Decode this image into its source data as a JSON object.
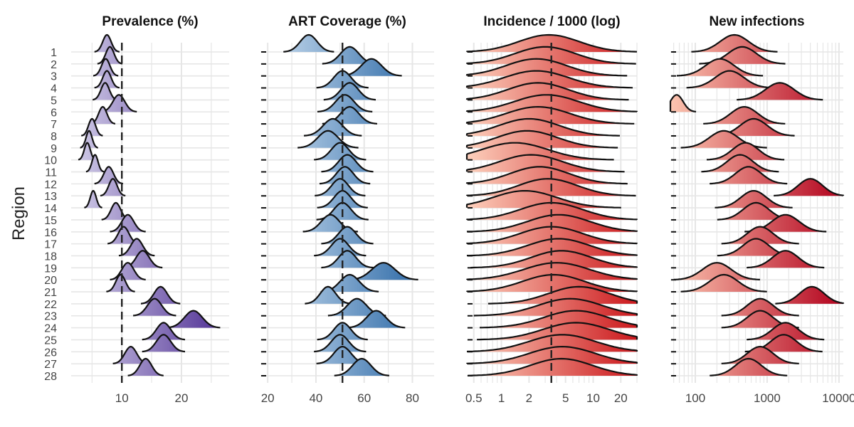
{
  "chart_data": {
    "type": "ridgeline",
    "ylabel": "Region",
    "regions": [
      "1",
      "2",
      "3",
      "4",
      "5",
      "6",
      "7",
      "8",
      "9",
      "10",
      "11",
      "12",
      "13",
      "14",
      "15",
      "16",
      "17",
      "18",
      "19",
      "20",
      "21",
      "22",
      "23",
      "24",
      "25",
      "26",
      "27",
      "28"
    ],
    "panels": [
      {
        "title": "Prevalence (%)",
        "scale": "linear",
        "xlim": [
          1.5,
          28
        ],
        "ticks": [
          10,
          20
        ],
        "tick_labels": [
          "10",
          "20"
        ],
        "reference_line": 10,
        "color_low": "#d4d0ea",
        "color_high": "#4b2a91",
        "show_region_labels": true,
        "distributions": [
          {
            "mode": 7.5,
            "spread": 0.7
          },
          {
            "mode": 8,
            "spread": 0.7
          },
          {
            "mode": 7.3,
            "spread": 0.7
          },
          {
            "mode": 7.5,
            "spread": 0.7
          },
          {
            "mode": 7.2,
            "spread": 0.7
          },
          {
            "mode": 9.5,
            "spread": 1.0
          },
          {
            "mode": 6.8,
            "spread": 0.7
          },
          {
            "mode": 5,
            "spread": 0.6
          },
          {
            "mode": 4.5,
            "spread": 0.5
          },
          {
            "mode": 4.2,
            "spread": 0.5
          },
          {
            "mode": 5.5,
            "spread": 0.5
          },
          {
            "mode": 7.8,
            "spread": 0.8
          },
          {
            "mode": 8.5,
            "spread": 0.7
          },
          {
            "mode": 5.2,
            "spread": 0.5
          },
          {
            "mode": 9,
            "spread": 0.8
          },
          {
            "mode": 11,
            "spread": 1.0
          },
          {
            "mode": 10.3,
            "spread": 0.9
          },
          {
            "mode": 12.5,
            "spread": 1.0
          },
          {
            "mode": 13.5,
            "spread": 1.1
          },
          {
            "mode": 11,
            "spread": 1.0
          },
          {
            "mode": 9.8,
            "spread": 0.8
          },
          {
            "mode": 16.5,
            "spread": 1.1
          },
          {
            "mode": 15.5,
            "spread": 1.2
          },
          {
            "mode": 22,
            "spread": 1.5
          },
          {
            "mode": 17,
            "spread": 1.2
          },
          {
            "mode": 17,
            "spread": 1.2
          },
          {
            "mode": 11.5,
            "spread": 1.0
          },
          {
            "mode": 14,
            "spread": 1.0
          }
        ]
      },
      {
        "title": "ART Coverage (%)",
        "scale": "linear",
        "xlim": [
          17,
          89
        ],
        "ticks": [
          20,
          40,
          60,
          80
        ],
        "tick_labels": [
          "20",
          "40",
          "60",
          "80"
        ],
        "reference_line": 51,
        "color_low": "#cfe1f2",
        "color_high": "#1f5fa0",
        "show_region_labels": false,
        "distributions": [
          {
            "mode": 37,
            "spread": 3.5
          },
          {
            "mode": 54,
            "spread": 3.8
          },
          {
            "mode": 63,
            "spread": 4.2
          },
          {
            "mode": 51,
            "spread": 3.6
          },
          {
            "mode": 54,
            "spread": 3.6
          },
          {
            "mode": 52,
            "spread": 3.8
          },
          {
            "mode": 54,
            "spread": 3.8
          },
          {
            "mode": 47,
            "spread": 4.0
          },
          {
            "mode": 45,
            "spread": 4.2
          },
          {
            "mode": 50,
            "spread": 3.6
          },
          {
            "mode": 53,
            "spread": 3.6
          },
          {
            "mode": 52,
            "spread": 3.5
          },
          {
            "mode": 50,
            "spread": 3.5
          },
          {
            "mode": 51,
            "spread": 3.5
          },
          {
            "mode": 51,
            "spread": 3.6
          },
          {
            "mode": 46,
            "spread": 3.8
          },
          {
            "mode": 53,
            "spread": 3.6
          },
          {
            "mode": 50,
            "spread": 3.6
          },
          {
            "mode": 53,
            "spread": 3.6
          },
          {
            "mode": 68,
            "spread": 4.8
          },
          {
            "mode": 54,
            "spread": 4.0
          },
          {
            "mode": 45,
            "spread": 3.2
          },
          {
            "mode": 57,
            "spread": 4.0
          },
          {
            "mode": 65,
            "spread": 4.0
          },
          {
            "mode": 51,
            "spread": 3.5
          },
          {
            "mode": 50,
            "spread": 3.6
          },
          {
            "mode": 51,
            "spread": 3.6
          },
          {
            "mode": 59,
            "spread": 3.8
          }
        ]
      },
      {
        "title": "Incidence / 1000 (log)",
        "scale": "log",
        "xlim": [
          0.42,
          30
        ],
        "ticks": [
          0.5,
          1,
          2,
          5,
          10,
          20
        ],
        "tick_labels": [
          "0.5",
          "1",
          "2",
          "5",
          "10",
          "20"
        ],
        "reference_line": 3.5,
        "color_low": "#fdd0bc",
        "color_high": "#cb181d",
        "show_region_labels": false,
        "distributions": [
          {
            "mode": 3.3,
            "spread": 0.33
          },
          {
            "mode": 3.0,
            "spread": 0.33
          },
          {
            "mode": 2.4,
            "spread": 0.33
          },
          {
            "mode": 2.4,
            "spread": 0.35
          },
          {
            "mode": 2.5,
            "spread": 0.33
          },
          {
            "mode": 3.1,
            "spread": 0.35
          },
          {
            "mode": 2.5,
            "spread": 0.35
          },
          {
            "mode": 2.0,
            "spread": 0.33
          },
          {
            "mode": 1.9,
            "spread": 0.33
          },
          {
            "mode": 1.4,
            "spread": 0.36
          },
          {
            "mode": 2.1,
            "spread": 0.34
          },
          {
            "mode": 2.6,
            "spread": 0.32
          },
          {
            "mode": 3.2,
            "spread": 0.32
          },
          {
            "mode": 1.8,
            "spread": 0.35
          },
          {
            "mode": 3.5,
            "spread": 0.34
          },
          {
            "mode": 4.2,
            "spread": 0.34
          },
          {
            "mode": 3.5,
            "spread": 0.34
          },
          {
            "mode": 4.2,
            "spread": 0.34
          },
          {
            "mode": 4.5,
            "spread": 0.33
          },
          {
            "mode": 4.0,
            "spread": 0.36
          },
          {
            "mode": 3.7,
            "spread": 0.34
          },
          {
            "mode": 7.0,
            "spread": 0.33
          },
          {
            "mode": 5.6,
            "spread": 0.35
          },
          {
            "mode": 6.5,
            "spread": 0.35
          },
          {
            "mode": 6.5,
            "spread": 0.36
          },
          {
            "mode": 4.6,
            "spread": 0.36
          },
          {
            "mode": 4.6,
            "spread": 0.36
          },
          {
            "mode": 4.5,
            "spread": 0.34
          }
        ]
      },
      {
        "title": "New infections",
        "scale": "log",
        "xlim": [
          45,
          11500
        ],
        "ticks": [
          100,
          1000,
          10000
        ],
        "tick_labels": [
          "100",
          "1000",
          "10000"
        ],
        "reference_line": null,
        "color_low": "#fcc5b0",
        "color_high": "#b2001c",
        "show_region_labels": false,
        "distributions": [
          {
            "mode": 350,
            "spread": 0.2
          },
          {
            "mode": 450,
            "spread": 0.2
          },
          {
            "mode": 220,
            "spread": 0.2
          },
          {
            "mode": 300,
            "spread": 0.2
          },
          {
            "mode": 1500,
            "spread": 0.2
          },
          {
            "mode": 55,
            "spread": 0.09
          },
          {
            "mode": 480,
            "spread": 0.19
          },
          {
            "mode": 650,
            "spread": 0.19
          },
          {
            "mode": 250,
            "spread": 0.2
          },
          {
            "mode": 500,
            "spread": 0.18
          },
          {
            "mode": 420,
            "spread": 0.18
          },
          {
            "mode": 550,
            "spread": 0.18
          },
          {
            "mode": 4000,
            "spread": 0.17
          },
          {
            "mode": 650,
            "spread": 0.18
          },
          {
            "mode": 700,
            "spread": 0.18
          },
          {
            "mode": 1800,
            "spread": 0.19
          },
          {
            "mode": 800,
            "spread": 0.18
          },
          {
            "mode": 700,
            "spread": 0.18
          },
          {
            "mode": 1800,
            "spread": 0.18
          },
          {
            "mode": 200,
            "spread": 0.2
          },
          {
            "mode": 250,
            "spread": 0.2
          },
          {
            "mode": 4200,
            "spread": 0.17
          },
          {
            "mode": 800,
            "spread": 0.18
          },
          {
            "mode": 800,
            "spread": 0.18
          },
          {
            "mode": 1800,
            "spread": 0.18
          },
          {
            "mode": 1700,
            "spread": 0.18
          },
          {
            "mode": 800,
            "spread": 0.18
          },
          {
            "mode": 550,
            "spread": 0.18
          }
        ]
      }
    ]
  }
}
